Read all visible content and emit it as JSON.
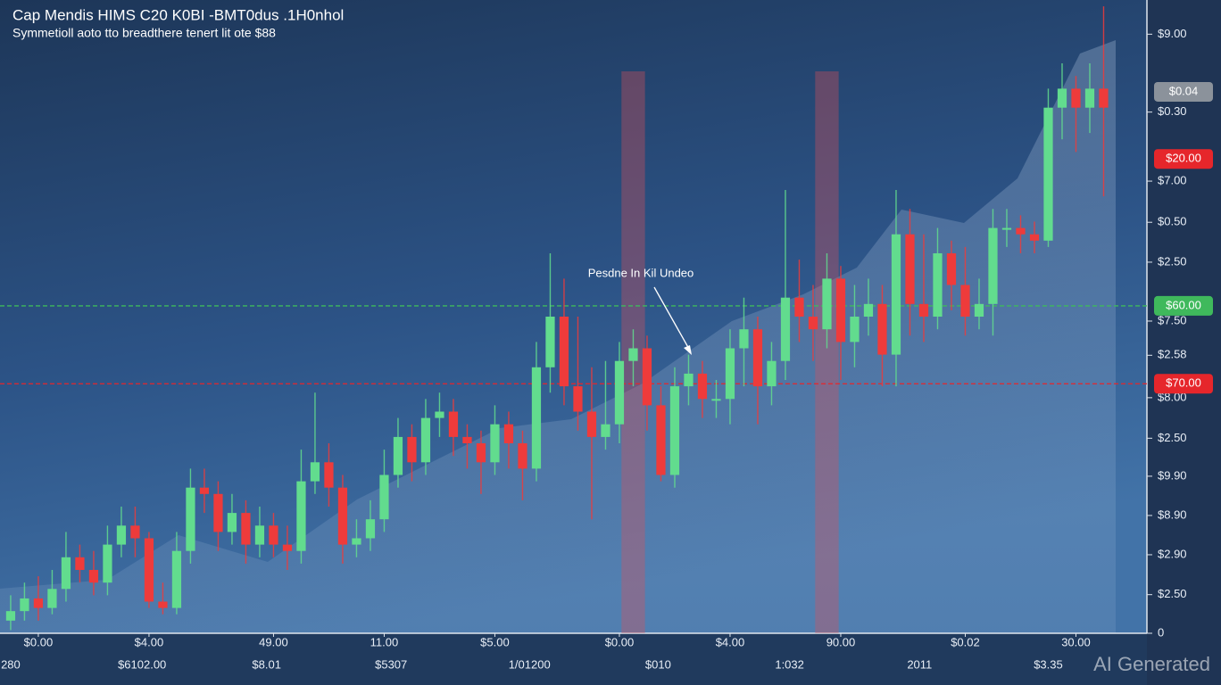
{
  "chart_data": {
    "type": "candlestick",
    "title": "Cap Mendis HIMS C20 K0BI -BMT0dus .1H0nhol",
    "subtitle": "Symmetioll aoto tto breadthere tenert lit ote $88",
    "annotation": "Pesdne In Kil Undeo",
    "watermark": "AI Generated",
    "up_color": "#62dc8e",
    "down_color": "#ee3b3b",
    "series": [
      {
        "open": [
          0.2,
          0.35,
          0.55,
          0.4,
          0.7,
          1.2,
          1.0,
          0.8,
          1.4,
          1.7,
          1.5,
          0.5,
          0.4,
          1.3,
          2.3,
          2.2,
          1.6,
          1.9,
          1.4,
          1.7,
          1.4,
          1.3,
          2.4,
          2.7,
          2.3,
          1.4,
          1.5,
          1.8,
          2.5,
          3.1,
          2.7,
          3.4,
          3.5,
          3.1,
          3.0,
          2.7,
          3.3,
          3.0,
          2.6,
          4.2,
          5.0,
          3.9,
          3.5,
          3.1,
          3.3,
          4.3,
          4.5,
          3.6,
          2.5,
          3.9,
          4.1,
          3.7,
          3.7,
          4.5,
          4.8,
          3.9,
          4.3,
          5.3,
          5.0,
          4.8,
          5.6,
          4.6,
          5.0,
          5.2,
          4.4,
          6.3,
          5.2,
          5.0,
          6.0,
          5.5,
          5.0,
          5.2,
          6.4,
          6.4,
          6.3,
          6.2,
          8.3,
          8.6,
          8.3,
          8.6
        ],
        "high": [
          0.6,
          0.8,
          0.9,
          1.0,
          1.6,
          1.4,
          1.3,
          1.7,
          2.0,
          2.0,
          1.6,
          0.8,
          1.6,
          2.6,
          2.6,
          2.4,
          2.2,
          2.1,
          2.0,
          1.9,
          1.7,
          2.9,
          3.8,
          3.0,
          2.5,
          1.8,
          2.1,
          2.9,
          3.4,
          3.3,
          3.7,
          3.8,
          3.7,
          3.3,
          3.2,
          3.6,
          3.5,
          3.2,
          4.6,
          6.0,
          5.6,
          5.0,
          4.2,
          4.3,
          4.6,
          4.8,
          4.7,
          3.9,
          4.2,
          4.4,
          4.3,
          4.0,
          4.8,
          5.3,
          5.0,
          4.6,
          7.0,
          5.9,
          5.5,
          6.0,
          5.8,
          5.5,
          5.6,
          5.5,
          7.0,
          6.7,
          6.3,
          6.4,
          6.2,
          6.1,
          5.6,
          6.7,
          6.7,
          6.6,
          6.5,
          8.6,
          9.0,
          8.8,
          9.0,
          9.9
        ],
        "low": [
          0.05,
          0.2,
          0.2,
          0.3,
          0.5,
          0.8,
          0.6,
          0.6,
          1.2,
          1.2,
          0.4,
          0.3,
          0.3,
          1.1,
          1.9,
          1.3,
          1.4,
          1.1,
          1.2,
          1.2,
          1.0,
          1.1,
          2.2,
          2.0,
          1.1,
          1.2,
          1.3,
          1.6,
          2.3,
          2.4,
          2.5,
          3.1,
          2.8,
          2.6,
          2.2,
          2.5,
          2.6,
          2.1,
          2.4,
          3.8,
          3.6,
          3.2,
          1.8,
          2.9,
          3.0,
          3.9,
          3.2,
          2.4,
          2.3,
          3.6,
          3.4,
          3.4,
          3.3,
          3.9,
          3.3,
          3.6,
          4.0,
          4.6,
          4.3,
          4.5,
          4.0,
          4.2,
          4.7,
          3.9,
          3.9,
          4.7,
          4.6,
          4.8,
          5.1,
          4.7,
          4.8,
          4.7,
          6.1,
          6.0,
          6.0,
          6.1,
          7.8,
          7.6,
          7.9,
          6.9
        ],
        "close": [
          0.35,
          0.55,
          0.4,
          0.7,
          1.2,
          1.0,
          0.8,
          1.4,
          1.7,
          1.5,
          0.5,
          0.4,
          1.3,
          2.3,
          2.2,
          1.6,
          1.9,
          1.4,
          1.7,
          1.4,
          1.3,
          2.4,
          2.7,
          2.3,
          1.4,
          1.5,
          1.8,
          2.5,
          3.1,
          2.7,
          3.4,
          3.5,
          3.1,
          3.0,
          2.7,
          3.3,
          3.0,
          2.6,
          4.2,
          5.0,
          3.9,
          3.5,
          3.1,
          3.3,
          4.3,
          4.5,
          3.6,
          2.5,
          3.9,
          4.1,
          3.7,
          3.7,
          4.5,
          4.8,
          3.9,
          4.3,
          5.3,
          5.0,
          4.8,
          5.6,
          4.6,
          5.0,
          5.2,
          4.4,
          6.3,
          5.2,
          5.0,
          6.0,
          5.5,
          5.0,
          5.2,
          6.4,
          6.4,
          6.3,
          6.2,
          8.3,
          8.6,
          8.3,
          8.6,
          8.3
        ]
      }
    ],
    "highlights": [
      45,
      59
    ],
    "xlim": [
      -0.77,
      82.13
    ],
    "xticks": [
      {
        "value": 2,
        "label": "$0.00"
      },
      {
        "value": 10,
        "label": "$4.00"
      },
      {
        "value": 19,
        "label": "49.00"
      },
      {
        "value": 27,
        "label": "11.00"
      },
      {
        "value": 35,
        "label": "$5.00"
      },
      {
        "value": 44,
        "label": "$0.00"
      },
      {
        "value": 52,
        "label": "$4.00"
      },
      {
        "value": 60,
        "label": "90.00"
      },
      {
        "value": 69,
        "label": "$0.02"
      },
      {
        "value": 77,
        "label": "30.00"
      }
    ],
    "xticks2": [
      {
        "value": 0,
        "label": "280"
      },
      {
        "value": 9.5,
        "label": "$6102.00"
      },
      {
        "value": 18.5,
        "label": "$8.01"
      },
      {
        "value": 27.5,
        "label": "$5307"
      },
      {
        "value": 37.5,
        "label": "1/01200"
      },
      {
        "value": 46.8,
        "label": "$010"
      },
      {
        "value": 56.3,
        "label": "1:032"
      },
      {
        "value": 65.7,
        "label": "2011"
      },
      {
        "value": 75,
        "label": "$3.35"
      }
    ],
    "ylim": [
      0,
      10
    ],
    "yticks": [
      {
        "value": 9.46,
        "label": "$9.00"
      },
      {
        "value": 8.23,
        "label": "$0.30"
      },
      {
        "value": 7.14,
        "label": "$7.00"
      },
      {
        "value": 6.49,
        "label": "$0.50"
      },
      {
        "value": 5.86,
        "label": "$2.50"
      },
      {
        "value": 4.93,
        "label": "$7.50"
      },
      {
        "value": 4.39,
        "label": "$2.58"
      },
      {
        "value": 3.72,
        "label": "$8.00"
      },
      {
        "value": 3.08,
        "label": "$2.50"
      },
      {
        "value": 2.48,
        "label": "$9.90"
      },
      {
        "value": 1.86,
        "label": "$8.90"
      },
      {
        "value": 1.24,
        "label": "$2.90"
      },
      {
        "value": 0.61,
        "label": "$2.50"
      },
      0
    ],
    "price_labels": [
      {
        "value": 8.55,
        "label": "$0.04",
        "color": "#8b929b",
        "line": false
      },
      {
        "value": 7.49,
        "label": "$20.00",
        "color": "#e6262b",
        "line": false
      },
      {
        "value": 5.17,
        "label": "$60.00",
        "color": "#3fb95c",
        "line": true
      },
      {
        "value": 3.94,
        "label": "$70.00",
        "color": "#e6262b",
        "line": true
      }
    ]
  }
}
